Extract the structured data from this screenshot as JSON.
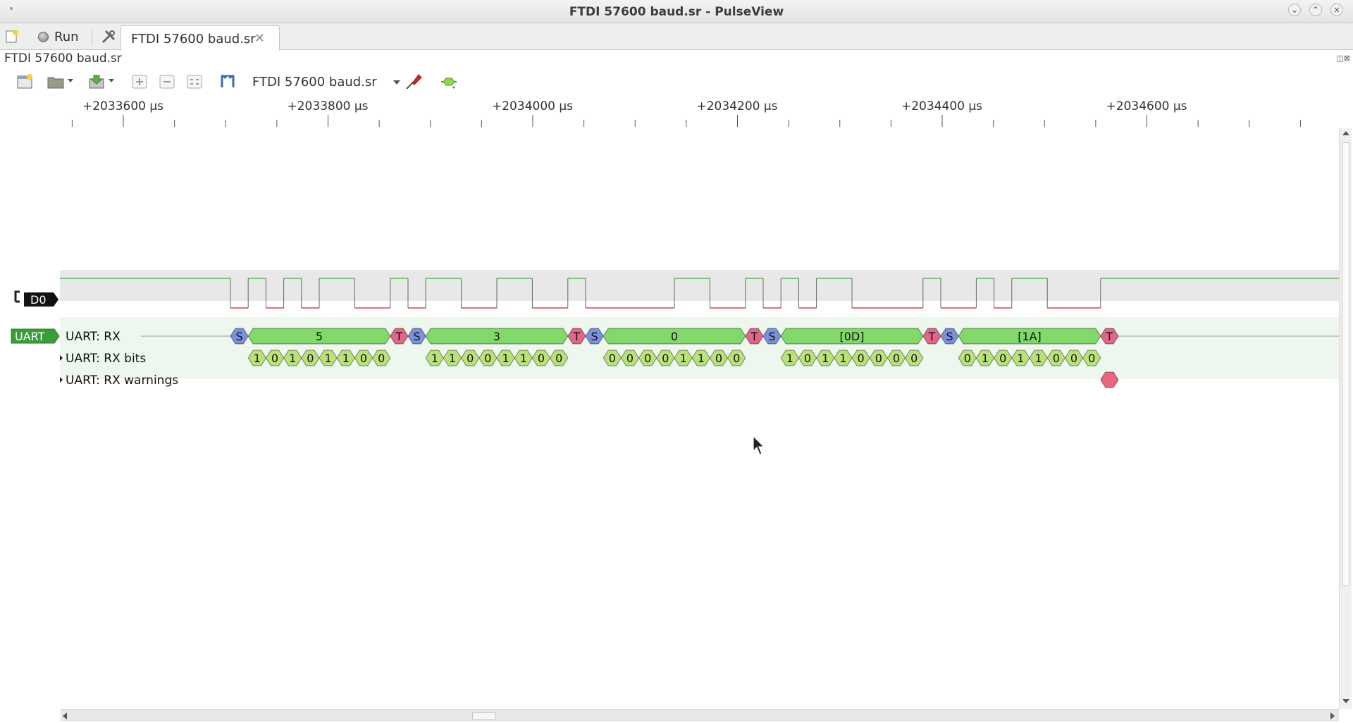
{
  "window": {
    "title": "FTDI 57600 baud.sr - PulseView",
    "controls": [
      "minimize-icon",
      "maximize-icon",
      "close-icon"
    ]
  },
  "tabbar": {
    "run_label": "Run",
    "tab_label": "FTDI 57600 baud.sr"
  },
  "session": {
    "label": "FTDI 57600 baud.sr"
  },
  "toolbar": {
    "device": "FTDI 57600 baud.sr"
  },
  "ruler": {
    "ticks": [
      "+2033600 µs",
      "+2033800 µs",
      "+2034000 µs",
      "+2034200 µs",
      "+2034400 µs",
      "+2034600 µs"
    ]
  },
  "channels": {
    "logic": {
      "name": "D0"
    },
    "decoder": {
      "badge": "UART",
      "rows": [
        "UART: RX",
        "UART: RX bits",
        "UART: RX warnings"
      ]
    }
  },
  "decode": {
    "bytes": [
      {
        "value": "5",
        "bits": [
          "1",
          "0",
          "1",
          "0",
          "1",
          "1",
          "0",
          "0"
        ]
      },
      {
        "value": "3",
        "bits": [
          "1",
          "1",
          "0",
          "0",
          "1",
          "1",
          "0",
          "0"
        ]
      },
      {
        "value": "0",
        "bits": [
          "0",
          "0",
          "0",
          "0",
          "1",
          "1",
          "0",
          "0"
        ]
      },
      {
        "value": "[0D]",
        "bits": [
          "1",
          "0",
          "1",
          "1",
          "0",
          "0",
          "0",
          "0"
        ]
      },
      {
        "value": "[1A]",
        "bits": [
          "0",
          "1",
          "0",
          "1",
          "1",
          "0",
          "0",
          "0"
        ]
      }
    ],
    "start_label": "S",
    "stop_label": "T",
    "colors": {
      "start": "#7b8fdc",
      "stop": "#e0668a",
      "data": "#82d86a",
      "bits": "#b9e27a",
      "warn": "#e8667f",
      "signal_high": "#3fb23f",
      "signal_low": "#cc2222",
      "trace_bg": "#e8e8e8",
      "decoder_bg": "#eef7ee"
    }
  }
}
